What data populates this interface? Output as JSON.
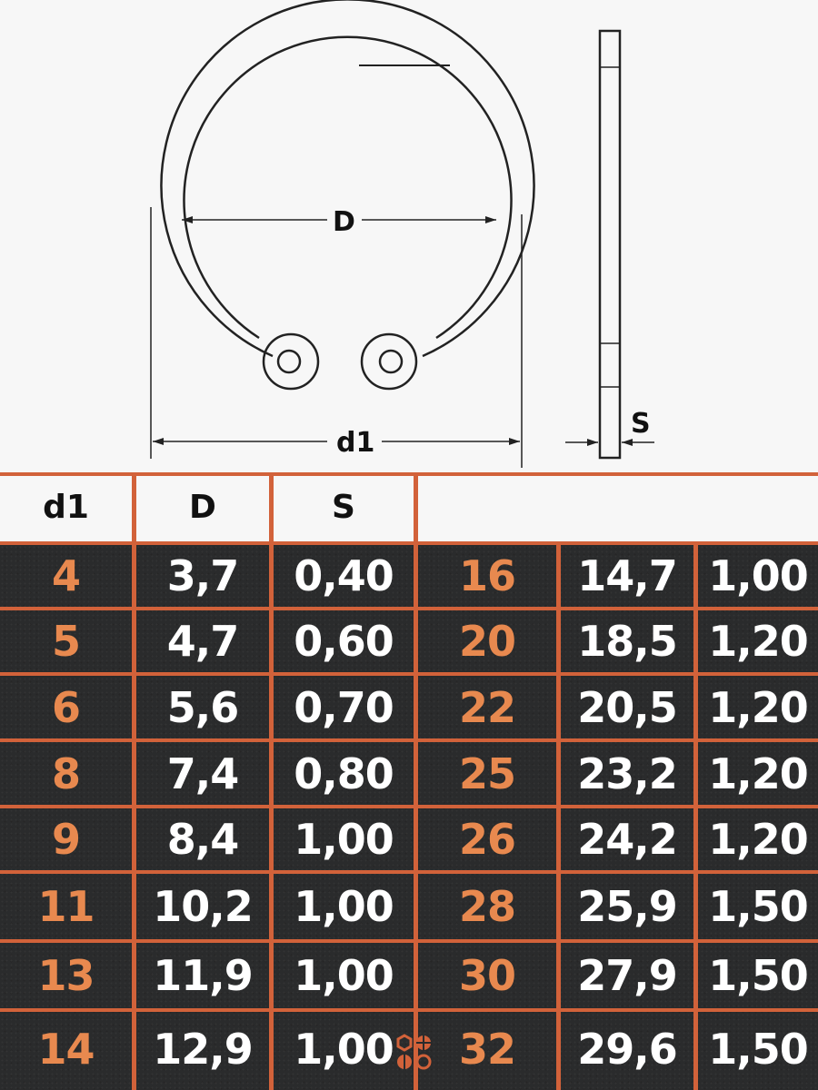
{
  "drawing": {
    "label_D": "D",
    "label_d1": "d1",
    "label_S": "S"
  },
  "table": {
    "headers": [
      "d1",
      "D",
      "S"
    ],
    "rows": [
      {
        "left": [
          "4",
          "3,7",
          "0,40"
        ],
        "right": [
          "16",
          "14,7",
          "1,00"
        ]
      },
      {
        "left": [
          "5",
          "4,7",
          "0,60"
        ],
        "right": [
          "20",
          "18,5",
          "1,20"
        ]
      },
      {
        "left": [
          "6",
          "5,6",
          "0,70"
        ],
        "right": [
          "22",
          "20,5",
          "1,20"
        ]
      },
      {
        "left": [
          "8",
          "7,4",
          "0,80"
        ],
        "right": [
          "25",
          "23,2",
          "1,20"
        ]
      },
      {
        "left": [
          "9",
          "8,4",
          "1,00"
        ],
        "right": [
          "26",
          "24,2",
          "1,20"
        ]
      },
      {
        "left": [
          "11",
          "10,2",
          "1,00"
        ],
        "right": [
          "28",
          "25,9",
          "1,50"
        ]
      },
      {
        "left": [
          "13",
          "11,9",
          "1,00"
        ],
        "right": [
          "30",
          "27,9",
          "1,50"
        ]
      },
      {
        "left": [
          "14",
          "12,9",
          "1,00"
        ],
        "right": [
          "32",
          "29,6",
          "1,50"
        ]
      }
    ]
  },
  "colors": {
    "accent": "#d2623a",
    "key_text": "#e8894f",
    "background_dark": "#2a2b2c"
  },
  "logo_icon": "fasteners-logo-icon"
}
